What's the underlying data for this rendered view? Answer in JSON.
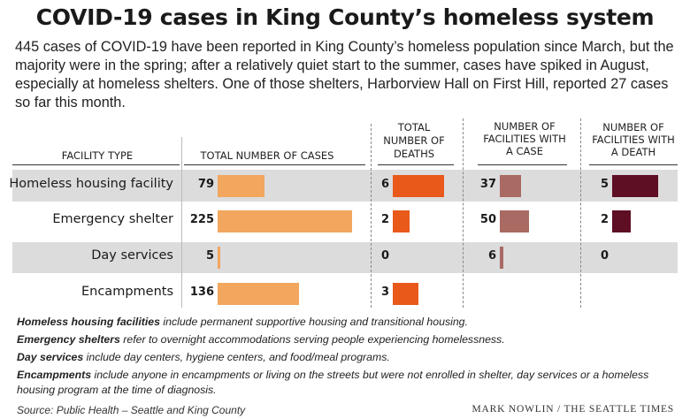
{
  "title": "COVID-19 cases in King County’s homeless system",
  "intro": "445 cases of COVID-19 have been reported in King County’s homeless population since March, but the majority were in the spring; after a relatively quiet start to the summer, cases have spiked in August, especially at homeless shelters. One of those shelters, Harborview Hall on First Hill, reported 27 cases so far this month.",
  "columns": {
    "facility_type": "FACILITY TYPE",
    "cases": "TOTAL NUMBER OF CASES",
    "deaths": "TOTAL NUMBER OF DEATHS",
    "facilities_case": "NUMBER OF FACILITIES WITH A CASE",
    "facilities_death": "NUMBER OF FACILITIES WITH A DEATH"
  },
  "colors": {
    "cases": "#f2a65e",
    "deaths": "#e8591a",
    "facilities_case": "#a86a63",
    "facilities_death": "#5e0f24",
    "band": "#dcdcdc"
  },
  "chart_data": {
    "type": "table",
    "categories": [
      "Homeless housing facility",
      "Emergency shelter",
      "Day services",
      "Encampments"
    ],
    "series": [
      {
        "name": "TOTAL NUMBER OF CASES",
        "values": [
          79,
          225,
          5,
          136
        ]
      },
      {
        "name": "TOTAL NUMBER OF DEATHS",
        "values": [
          6,
          2,
          0,
          3
        ]
      },
      {
        "name": "NUMBER OF FACILITIES WITH A CASE",
        "values": [
          37,
          50,
          6,
          null
        ]
      },
      {
        "name": "NUMBER OF FACILITIES WITH A DEATH",
        "values": [
          5,
          2,
          0,
          null
        ]
      }
    ]
  },
  "notes": [
    {
      "term": "Homeless housing facilities",
      "text": " include permanent supportive housing and transitional housing."
    },
    {
      "term": "Emergency shelters",
      "text": " refer to overnight accommodations serving people experiencing homelessness."
    },
    {
      "term": "Day services",
      "text": " include day centers, hygiene centers, and food/meal programs."
    },
    {
      "term": "Encampments",
      "text": " include anyone in encampments or living on the streets but were not enrolled in shelter, day services or a homeless housing program at the time of diagnosis."
    }
  ],
  "source": "Source: Public Health – Seattle and King County",
  "credit": "MARK NOWLIN / THE SEATTLE TIMES"
}
